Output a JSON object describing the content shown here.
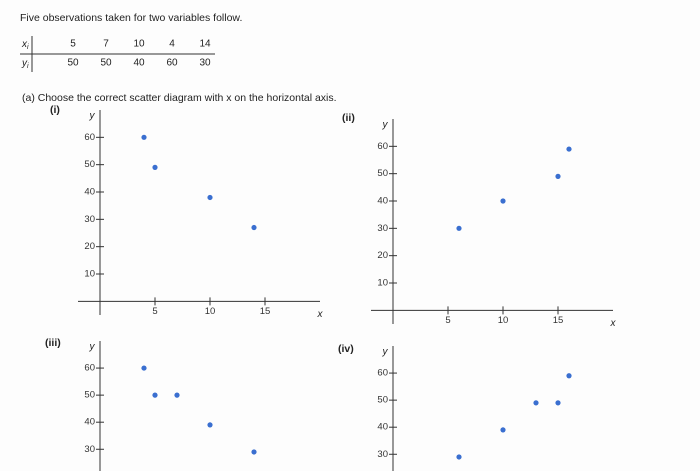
{
  "intro": "Five observations taken for two variables follow.",
  "table": {
    "row_labels": [
      {
        "var": "x",
        "sub": "i"
      },
      {
        "var": "y",
        "sub": "i"
      }
    ],
    "rows": [
      [
        5,
        7,
        10,
        4,
        14
      ],
      [
        50,
        50,
        40,
        60,
        30
      ]
    ]
  },
  "question": "(a) Choose the correct scatter diagram with x on the horizontal axis.",
  "point_color": "#3a6fd0",
  "plots": [
    {
      "label": "(i)",
      "x_label": "x",
      "y_label": "y",
      "xlim": [
        -2,
        20
      ],
      "ylim": [
        -5,
        70
      ],
      "xticks": [
        5,
        10,
        15
      ],
      "yticks": [
        10,
        20,
        30,
        40,
        50,
        60
      ],
      "points": {
        "x": [
          4,
          5,
          10,
          14
        ],
        "y": [
          60,
          49,
          38,
          27
        ]
      }
    },
    {
      "label": "(ii)",
      "x_label": "x",
      "y_label": "y",
      "xlim": [
        -2,
        20
      ],
      "ylim": [
        -5,
        70
      ],
      "xticks": [
        5,
        10,
        15
      ],
      "yticks": [
        10,
        20,
        30,
        40,
        50,
        60
      ],
      "points": {
        "x": [
          16,
          15,
          10,
          6
        ],
        "y": [
          59,
          49,
          40,
          30
        ]
      }
    },
    {
      "label": "(iii)",
      "y_label": "y",
      "xlim": [
        -2,
        20
      ],
      "ylim": [
        -5,
        70
      ],
      "yticks": [
        30,
        40,
        50,
        60
      ],
      "points": {
        "x": [
          4,
          5,
          7,
          10,
          14
        ],
        "y": [
          60,
          50,
          50,
          39,
          29
        ]
      }
    },
    {
      "label": "(iv)",
      "y_label": "y",
      "xlim": [
        -2,
        20
      ],
      "ylim": [
        -5,
        70
      ],
      "yticks": [
        30,
        40,
        50,
        60
      ],
      "points": {
        "x": [
          16,
          13,
          15,
          10,
          6
        ],
        "y": [
          59,
          49,
          49,
          39,
          29
        ]
      }
    }
  ]
}
